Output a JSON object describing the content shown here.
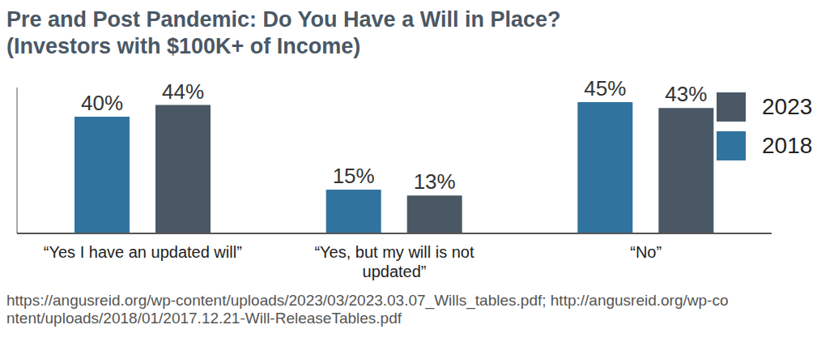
{
  "chart_data": {
    "type": "bar",
    "title": "Pre and Post Pandemic: Do You Have a Will in Place?",
    "subtitle": "(Investors with $100K+ of Income)",
    "categories": [
      "“Yes I have an updated will”",
      "“Yes, but my will is not updated”",
      "“No”"
    ],
    "series": [
      {
        "name": "2018",
        "color": "#31739f",
        "values": [
          40,
          15,
          45
        ],
        "value_labels": [
          "40%",
          "15%",
          "45%"
        ]
      },
      {
        "name": "2023",
        "color": "#4a5866",
        "values": [
          44,
          13,
          43
        ],
        "value_labels": [
          "44%",
          "13%",
          "43%"
        ]
      }
    ],
    "ylim": [
      0,
      50
    ],
    "grid": false,
    "legend": "right",
    "data_labels": true,
    "tick_labels": "x",
    "annotations": [
      "https://angusreid.org/wp-content/uploads/2023/03/2023.03.07_Wills_tables.pdf; http://angusreid.org/wp-content/uploads/2018/01/2017.12.21-Will-ReleaseTables.pdf"
    ]
  }
}
